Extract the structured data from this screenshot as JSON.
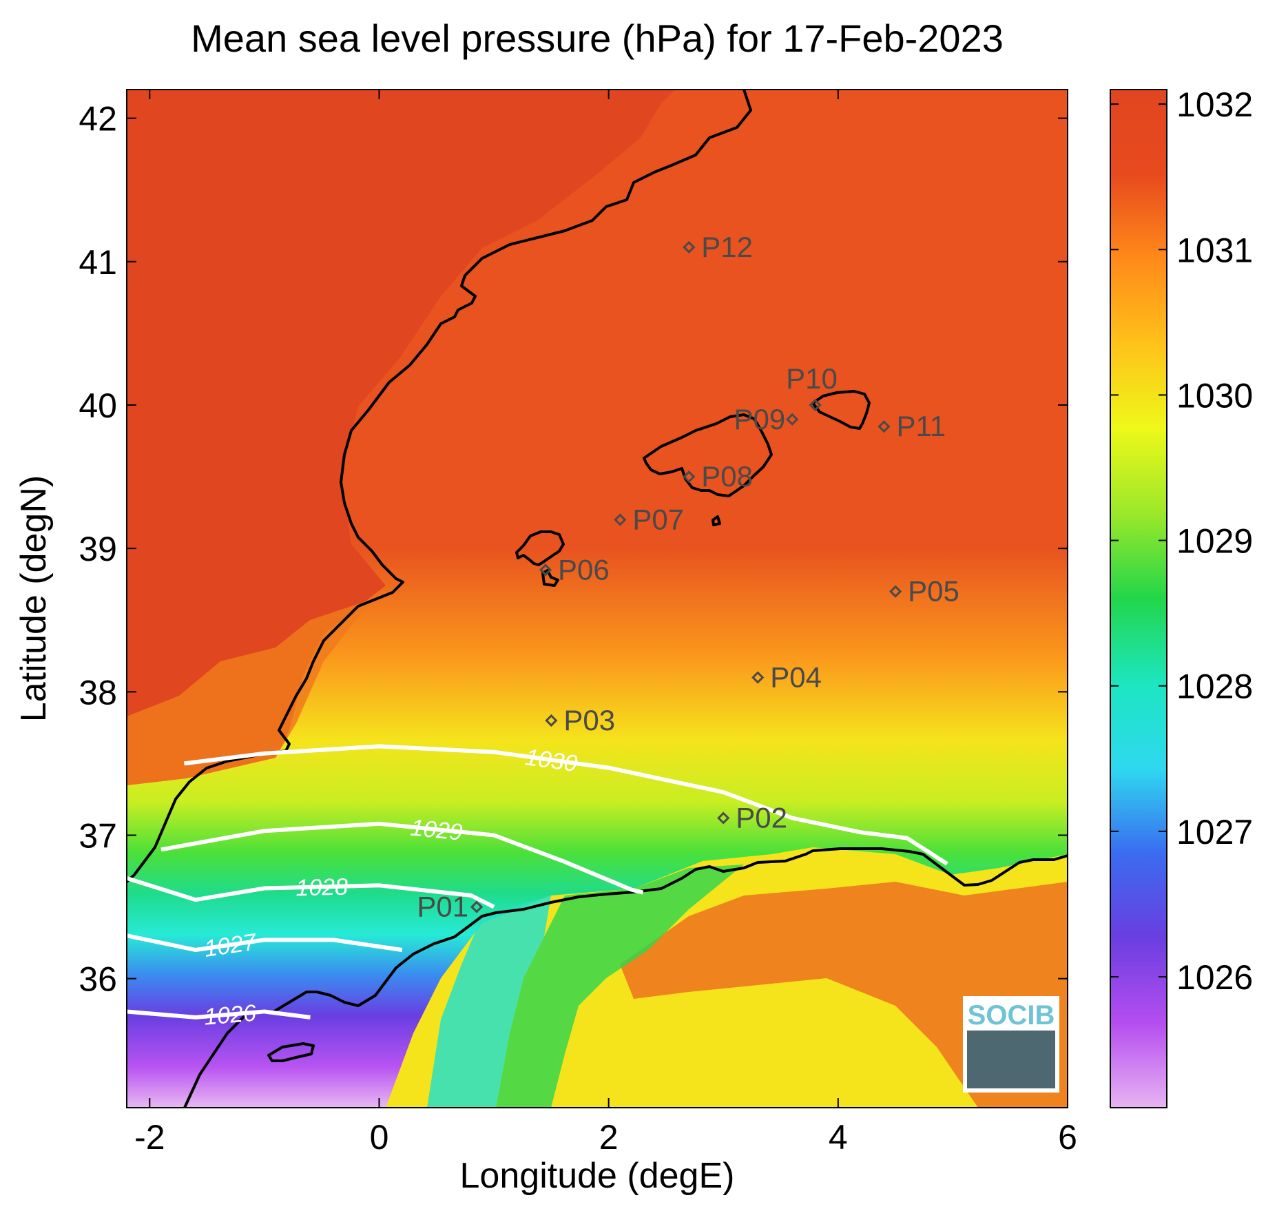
{
  "title": "Mean sea level pressure (hPa) for 17-Feb-2023",
  "xlabel": "Longitude (degE)",
  "ylabel": "Latitude (degN)",
  "x_ticks": [
    "-2",
    "0",
    "2",
    "4",
    "6"
  ],
  "y_ticks": [
    "36",
    "37",
    "38",
    "39",
    "40",
    "41",
    "42"
  ],
  "colorbar": {
    "ticks": [
      "1026",
      "1027",
      "1028",
      "1029",
      "1030",
      "1031",
      "1032"
    ],
    "colormap": [
      "#e8b3f2",
      "#b54ef0",
      "#6a3ee0",
      "#3a6cf0",
      "#2fd8f0",
      "#1de6c0",
      "#22d64a",
      "#9be82a",
      "#eef81a",
      "#ffc21a",
      "#ff8a1a",
      "#e84a1e",
      "#e04620"
    ]
  },
  "logo": {
    "text": "SOCIB"
  },
  "chart_data": {
    "type": "heatmap",
    "title": "Mean sea level pressure (hPa) for 17-Feb-2023",
    "xlabel": "Longitude (degE)",
    "ylabel": "Latitude (degN)",
    "xlim": [
      -2.2,
      6.0
    ],
    "ylim": [
      35.1,
      42.2
    ],
    "clim": [
      1025.1,
      1032.1
    ],
    "colorbar_label_values": [
      1026,
      1027,
      1028,
      1029,
      1030,
      1031,
      1032
    ],
    "contours": [
      {
        "level": "1030",
        "label": "1030",
        "points": [
          [
            -1.7,
            37.5
          ],
          [
            -1.0,
            37.57
          ],
          [
            0.0,
            37.62
          ],
          [
            1.0,
            37.58
          ],
          [
            2.0,
            37.47
          ],
          [
            3.0,
            37.3
          ],
          [
            3.6,
            37.12
          ],
          [
            4.2,
            37.02
          ],
          [
            4.6,
            36.98
          ],
          [
            4.95,
            36.8
          ]
        ]
      },
      {
        "level": "1029",
        "label": "1029",
        "points": [
          [
            -1.9,
            36.9
          ],
          [
            -1.0,
            37.03
          ],
          [
            0.0,
            37.08
          ],
          [
            1.0,
            37.0
          ],
          [
            1.6,
            36.82
          ],
          [
            2.2,
            36.62
          ],
          [
            2.3,
            36.6
          ]
        ]
      },
      {
        "level": "1028",
        "label": "1028",
        "points": [
          [
            -2.2,
            36.7
          ],
          [
            -1.6,
            36.55
          ],
          [
            -1.0,
            36.63
          ],
          [
            0.0,
            36.65
          ],
          [
            0.8,
            36.58
          ],
          [
            1.0,
            36.5
          ]
        ]
      },
      {
        "level": "1027",
        "label": "1027",
        "points": [
          [
            -2.2,
            36.3
          ],
          [
            -1.6,
            36.2
          ],
          [
            -1.0,
            36.27
          ],
          [
            -0.4,
            36.27
          ],
          [
            0.2,
            36.2
          ]
        ]
      },
      {
        "level": "1026",
        "label": "1026",
        "points": [
          [
            -2.2,
            35.77
          ],
          [
            -1.6,
            35.73
          ],
          [
            -1.0,
            35.77
          ],
          [
            -0.6,
            35.73
          ]
        ]
      }
    ],
    "stations": [
      {
        "name": "P01",
        "lon": 0.85,
        "lat": 36.5
      },
      {
        "name": "P02",
        "lon": 3.0,
        "lat": 37.12
      },
      {
        "name": "P03",
        "lon": 1.5,
        "lat": 37.8
      },
      {
        "name": "P04",
        "lon": 3.3,
        "lat": 38.1
      },
      {
        "name": "P05",
        "lon": 4.5,
        "lat": 38.7
      },
      {
        "name": "P06",
        "lon": 1.45,
        "lat": 38.85
      },
      {
        "name": "P07",
        "lon": 2.1,
        "lat": 39.2
      },
      {
        "name": "P08",
        "lon": 2.7,
        "lat": 39.5
      },
      {
        "name": "P09",
        "lon": 3.6,
        "lat": 39.9
      },
      {
        "name": "P10",
        "lon": 3.8,
        "lat": 40.0
      },
      {
        "name": "P11",
        "lon": 4.4,
        "lat": 39.85
      },
      {
        "name": "P12",
        "lon": 2.7,
        "lat": 41.1
      }
    ]
  }
}
